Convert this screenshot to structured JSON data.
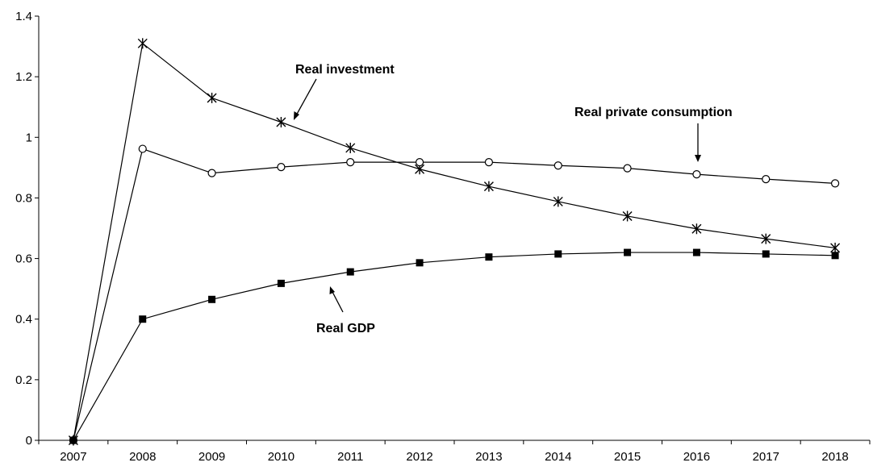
{
  "chart_data": {
    "type": "line",
    "title": "",
    "xlabel": "",
    "ylabel": "",
    "categories": [
      "2007",
      "2008",
      "2009",
      "2010",
      "2011",
      "2012",
      "2013",
      "2014",
      "2015",
      "2016",
      "2017",
      "2018"
    ],
    "ylim": [
      0,
      1.4
    ],
    "yticks": [
      "0",
      "0.2",
      "0.4",
      "0.6",
      "0.8",
      "1",
      "1.2",
      "1.4"
    ],
    "grid": false,
    "legend": "none",
    "series": [
      {
        "key": "investment",
        "marker": "star-icon",
        "values": [
          0,
          1.31,
          1.13,
          1.05,
          0.965,
          0.895,
          0.838,
          0.788,
          0.74,
          0.698,
          0.665,
          0.635
        ]
      },
      {
        "key": "consumption",
        "marker": "open-circle-icon",
        "values": [
          0,
          0.962,
          0.882,
          0.902,
          0.918,
          0.918,
          0.918,
          0.907,
          0.898,
          0.878,
          0.862,
          0.848
        ]
      },
      {
        "key": "gdp",
        "marker": "filled-square-icon",
        "values": [
          0,
          0.4,
          0.465,
          0.518,
          0.556,
          0.586,
          0.605,
          0.615,
          0.62,
          0.62,
          0.615,
          0.61
        ]
      }
    ],
    "annotations": [
      {
        "text": "Real investment",
        "series": "investment"
      },
      {
        "text": "Real private consumption",
        "series": "consumption"
      },
      {
        "text": "Real GDP",
        "series": "gdp"
      }
    ]
  }
}
